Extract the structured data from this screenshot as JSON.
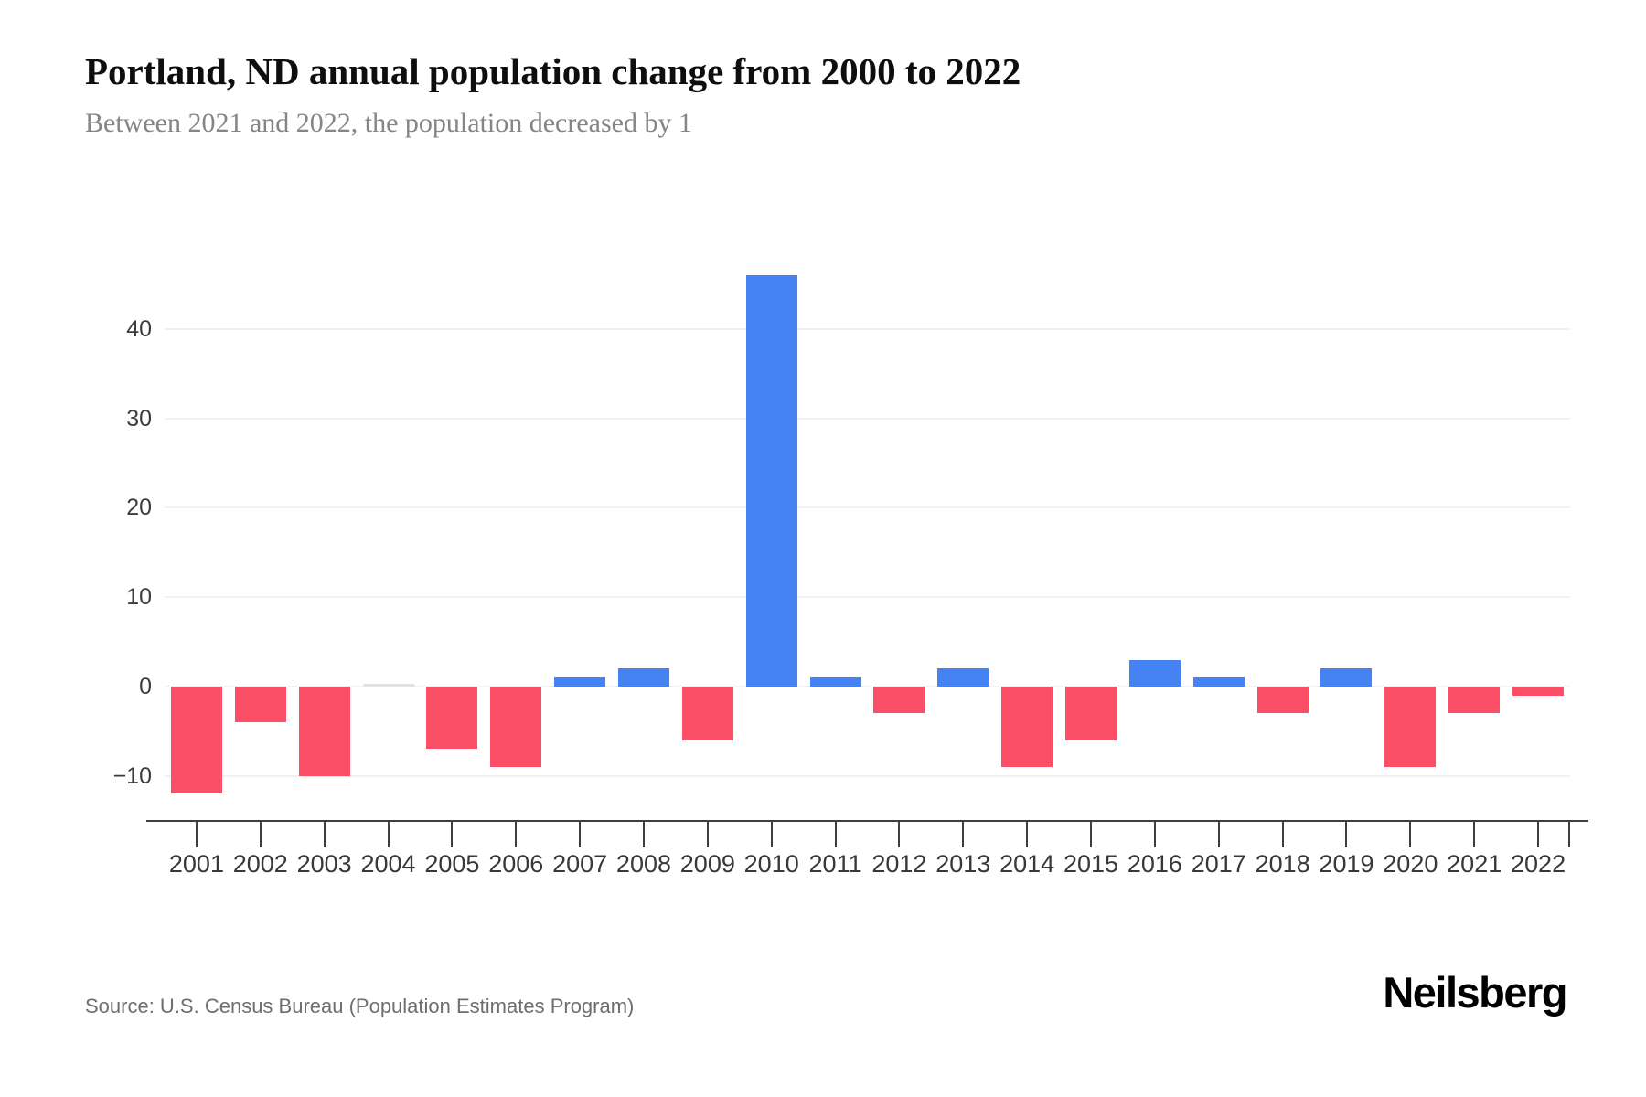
{
  "header": {
    "title": "Portland, ND annual population change from 2000 to 2022",
    "subtitle": "Between 2021 and 2022, the population decreased by 1"
  },
  "footer": {
    "source": "Source: U.S. Census Bureau (Population Estimates Program)",
    "brand": "Neilsberg"
  },
  "chart_data": {
    "type": "bar",
    "title": "Portland, ND annual population change from 2000 to 2022",
    "categories": [
      "2001",
      "2002",
      "2003",
      "2004",
      "2005",
      "2006",
      "2007",
      "2008",
      "2009",
      "2010",
      "2011",
      "2012",
      "2013",
      "2014",
      "2015",
      "2016",
      "2017",
      "2018",
      "2019",
      "2020",
      "2021",
      "2022"
    ],
    "values": [
      -12,
      -4,
      -10,
      0,
      -7,
      -9,
      1,
      2,
      -6,
      46,
      1,
      -3,
      2,
      -9,
      -6,
      3,
      1,
      -3,
      2,
      -9,
      -3,
      -1
    ],
    "xlabel": "",
    "ylabel": "",
    "ylim": [
      -15,
      50
    ],
    "yticks": [
      40,
      30,
      20,
      10,
      0,
      -10
    ],
    "ytick_labels": [
      "40",
      "30",
      "20",
      "10",
      "0",
      "−10"
    ],
    "grid": true,
    "legend": "none",
    "colors": {
      "positive": "#4583f2",
      "negative": "#fb4e67",
      "zero": "#e2e2e2",
      "gridline": "#f1f1f1",
      "axis": "#3f3f3f",
      "title": "#0e0e0e",
      "subtitle": "#858585"
    }
  }
}
